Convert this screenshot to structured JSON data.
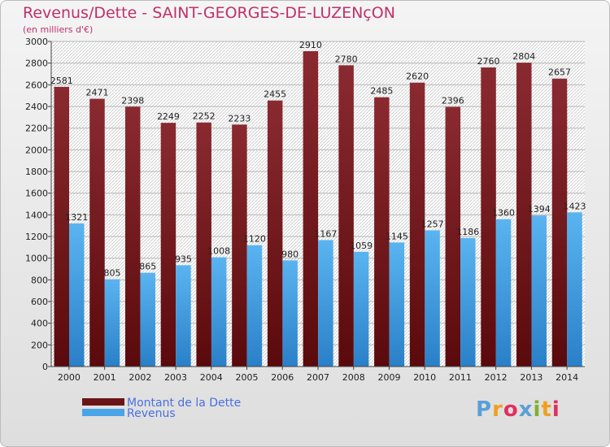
{
  "chart_data": {
    "type": "bar",
    "title": "Revenus/Dette - SAINT-GEORGES-DE-LUZENçON",
    "subtitle": "(en milliers d'€)",
    "categories": [
      "2000",
      "2001",
      "2002",
      "2003",
      "2004",
      "2005",
      "2006",
      "2007",
      "2008",
      "2009",
      "2010",
      "2011",
      "2012",
      "2013",
      "2014"
    ],
    "series": [
      {
        "name": "Montant de la Dette",
        "color": "#7a1a1e",
        "values": [
          2581,
          2471,
          2398,
          2249,
          2252,
          2233,
          2455,
          2910,
          2780,
          2485,
          2620,
          2396,
          2760,
          2804,
          2657
        ]
      },
      {
        "name": "Revenus",
        "color": "#4aa4e8",
        "values": [
          1321,
          805,
          865,
          935,
          1008,
          1120,
          980,
          1167,
          1059,
          1145,
          1257,
          1186,
          1360,
          1394,
          1423
        ]
      }
    ],
    "ylim": [
      0,
      3000
    ],
    "yticks": [
      0,
      200,
      400,
      600,
      800,
      1000,
      1200,
      1400,
      1600,
      1800,
      2000,
      2200,
      2400,
      2600,
      2800,
      3000
    ],
    "grid": true,
    "legend": "bottom-left"
  },
  "brand": {
    "letters": [
      "P",
      "r",
      "o",
      "x",
      "i",
      "t",
      "i"
    ]
  }
}
